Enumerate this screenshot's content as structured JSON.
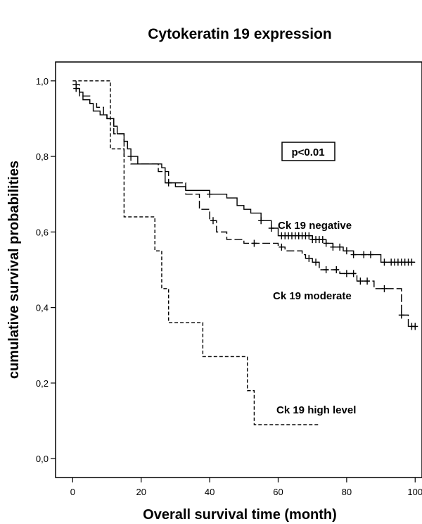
{
  "chart_data": {
    "type": "line",
    "subtype": "kaplan-meier",
    "title": "Cytokeratin 19 expression",
    "xlabel": "Overall survival time (month)",
    "ylabel": "cumulative survival probabilities",
    "xlim": [
      -5,
      102
    ],
    "ylim": [
      -0.05,
      1.05
    ],
    "x_ticks": [
      0,
      20,
      40,
      60,
      80,
      100
    ],
    "x_tick_labels": [
      "0",
      "20",
      "40",
      "60",
      "80",
      "100"
    ],
    "y_ticks": [
      0.0,
      0.2,
      0.4,
      0.6,
      0.8,
      1.0
    ],
    "y_tick_labels": [
      "0,0",
      "0,2",
      "0,4",
      "0,6",
      "0,8",
      "1,0"
    ],
    "grid": false,
    "annotation": "p<0.01",
    "series": [
      {
        "name": "Ck 19 negative",
        "line_style": "solid",
        "steps": [
          [
            0,
            0.99
          ],
          [
            1,
            0.98
          ],
          [
            2,
            0.97
          ],
          [
            3,
            0.95
          ],
          [
            5,
            0.94
          ],
          [
            6,
            0.92
          ],
          [
            8,
            0.91
          ],
          [
            10,
            0.9
          ],
          [
            12,
            0.88
          ],
          [
            13,
            0.86
          ],
          [
            15,
            0.84
          ],
          [
            16,
            0.82
          ],
          [
            17,
            0.8
          ],
          [
            19,
            0.78
          ],
          [
            26,
            0.77
          ],
          [
            27,
            0.73
          ],
          [
            30,
            0.72
          ],
          [
            33,
            0.71
          ],
          [
            40,
            0.7
          ],
          [
            45,
            0.69
          ],
          [
            48,
            0.67
          ],
          [
            50,
            0.66
          ],
          [
            52,
            0.65
          ],
          [
            55,
            0.63
          ],
          [
            58,
            0.61
          ],
          [
            60,
            0.59
          ],
          [
            70,
            0.58
          ],
          [
            74,
            0.57
          ],
          [
            76,
            0.56
          ],
          [
            79,
            0.55
          ],
          [
            82,
            0.54
          ],
          [
            90,
            0.52
          ],
          [
            100,
            0.52
          ]
        ],
        "censor_x": [
          1,
          28,
          40,
          55,
          58,
          61,
          62,
          63,
          64,
          65,
          66,
          67,
          68,
          69,
          70,
          71,
          72,
          73,
          74,
          76,
          78,
          80,
          82,
          85,
          87,
          91,
          93,
          94,
          95,
          96,
          97,
          98,
          99
        ]
      },
      {
        "name": "Ck 19 moderate",
        "line_style": "long-dash",
        "steps": [
          [
            0,
            0.99
          ],
          [
            2,
            0.96
          ],
          [
            5,
            0.94
          ],
          [
            7,
            0.93
          ],
          [
            9,
            0.91
          ],
          [
            10,
            0.9
          ],
          [
            12,
            0.86
          ],
          [
            15,
            0.8
          ],
          [
            17,
            0.78
          ],
          [
            25,
            0.76
          ],
          [
            28,
            0.73
          ],
          [
            33,
            0.7
          ],
          [
            37,
            0.66
          ],
          [
            40,
            0.63
          ],
          [
            42,
            0.6
          ],
          [
            45,
            0.58
          ],
          [
            50,
            0.57
          ],
          [
            60,
            0.56
          ],
          [
            62,
            0.55
          ],
          [
            67,
            0.54
          ],
          [
            68,
            0.53
          ],
          [
            70,
            0.52
          ],
          [
            72,
            0.5
          ],
          [
            78,
            0.49
          ],
          [
            83,
            0.47
          ],
          [
            88,
            0.45
          ],
          [
            90,
            0.45
          ],
          [
            93,
            0.45
          ],
          [
            96,
            0.38
          ],
          [
            98,
            0.35
          ],
          [
            100,
            0.35
          ]
        ],
        "censor_x": [
          1,
          41,
          53,
          61,
          69,
          71,
          74,
          77,
          80,
          82,
          84,
          86,
          91,
          96,
          99,
          100
        ]
      },
      {
        "name": "Ck 19 high level",
        "line_style": "short-dash",
        "steps": [
          [
            0,
            1.0
          ],
          [
            10,
            1.0
          ],
          [
            11,
            0.82
          ],
          [
            12,
            0.82
          ],
          [
            15,
            0.64
          ],
          [
            23,
            0.64
          ],
          [
            24,
            0.55
          ],
          [
            25,
            0.55
          ],
          [
            26,
            0.45
          ],
          [
            27,
            0.45
          ],
          [
            28,
            0.36
          ],
          [
            37,
            0.36
          ],
          [
            38,
            0.27
          ],
          [
            50,
            0.27
          ],
          [
            51,
            0.18
          ],
          [
            52,
            0.18
          ],
          [
            53,
            0.09
          ],
          [
            72,
            0.09
          ]
        ],
        "censor_x": []
      }
    ]
  }
}
